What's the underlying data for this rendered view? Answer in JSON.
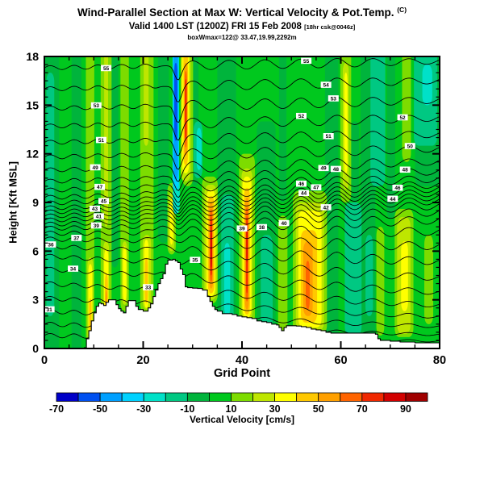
{
  "header": {
    "line1": "Wind-Parallel Section at Max W: Vertical Velocity & Pot.Temp.",
    "line1_suffix": "(C)",
    "line2": "Valid 1400 LST (1200Z) FRI 15 Feb 2008",
    "line2_note": "[18hr csk@0046z]",
    "line3": "boxWmax=122@ 33.47,19.99,2292m"
  },
  "axes": {
    "x": {
      "label": "Grid Point",
      "min": 0,
      "max": 80,
      "major_ticks": [
        0,
        20,
        40,
        60,
        80
      ],
      "minor_step": 5
    },
    "y": {
      "label": "Height [Kft MSL]",
      "min": 0,
      "max": 18,
      "major_ticks": [
        0,
        3,
        6,
        9,
        12,
        15,
        18
      ],
      "minor_step": 0.5
    }
  },
  "colorbar": {
    "title": "Vertical Velocity [cm/s]",
    "min": -70,
    "max": 100,
    "step": 10,
    "tick_labels": [
      -70,
      -50,
      -30,
      -10,
      10,
      30,
      50,
      70,
      90
    ],
    "colors": [
      "#0000C8",
      "#0050F0",
      "#00A0FF",
      "#00D2FF",
      "#00E1C8",
      "#00C882",
      "#00B43C",
      "#00C81E",
      "#7DDC00",
      "#BEE600",
      "#FFFF00",
      "#FFC800",
      "#FFA000",
      "#FF6400",
      "#F02800",
      "#D20000",
      "#A00000"
    ]
  },
  "chart_data": {
    "type": "heatmap",
    "title": "Wind-parallel vertical cross-section: vertical velocity (filled, cm/s) and potential temperature (contour lines, C) over terrain (white silhouette)",
    "x": {
      "label": "Grid Point",
      "range": [
        0,
        80
      ]
    },
    "y": {
      "label": "Height [Kft MSL]",
      "range": [
        0,
        18
      ]
    },
    "field_base_value": 5,
    "streak_format": "[x_start_grid, x_end_grid, z_bottom_kft, z_top_kft, velocity_band_center_cm_s]",
    "streaks": [
      [
        0,
        3,
        0,
        18,
        -5
      ],
      [
        5.5,
        7.5,
        0,
        18,
        -5
      ],
      [
        13.5,
        15,
        5,
        18,
        -5
      ],
      [
        23,
        25.2,
        6.5,
        18,
        -5
      ],
      [
        29.8,
        31.2,
        10,
        18,
        -5
      ],
      [
        35,
        38.8,
        0,
        18,
        -5
      ],
      [
        43,
        46.8,
        0,
        14,
        -5
      ],
      [
        47.5,
        49,
        9,
        18,
        -5
      ],
      [
        56.8,
        59.5,
        0,
        18,
        -5
      ],
      [
        64,
        67,
        0,
        18,
        -5
      ],
      [
        69.3,
        71,
        8,
        18,
        -5
      ],
      [
        75,
        80,
        10,
        18,
        -5
      ],
      [
        62,
        63.7,
        9,
        14,
        -5
      ],
      [
        0.4,
        2,
        2,
        17,
        -15
      ],
      [
        35.8,
        38.3,
        1.5,
        9.5,
        -15
      ],
      [
        43.8,
        46.2,
        1,
        7,
        -15
      ],
      [
        60.8,
        64.2,
        0.8,
        9,
        -15
      ],
      [
        66,
        69,
        10,
        18,
        -15
      ],
      [
        74.8,
        79.5,
        12.5,
        18,
        -15
      ],
      [
        30.2,
        32,
        10.5,
        14,
        -15
      ],
      [
        65,
        66.5,
        2,
        7,
        -15
      ],
      [
        8.4,
        10.1,
        0.3,
        18,
        15
      ],
      [
        11.4,
        13.6,
        0.8,
        18,
        15
      ],
      [
        15.4,
        17.1,
        2.3,
        18,
        15
      ],
      [
        19.4,
        22.1,
        2.2,
        18,
        15
      ],
      [
        24.9,
        26.6,
        5.8,
        10.2,
        15
      ],
      [
        31.9,
        35.1,
        2.8,
        10.6,
        15
      ],
      [
        39.4,
        42.6,
        1.5,
        12,
        15
      ],
      [
        47.3,
        49.2,
        0.9,
        8.2,
        15
      ],
      [
        50.3,
        57.2,
        0.9,
        9.7,
        15
      ],
      [
        59.9,
        62.1,
        9,
        18,
        15
      ],
      [
        70.9,
        74.7,
        0.7,
        8.6,
        15
      ],
      [
        72.4,
        74.2,
        11.5,
        18,
        15
      ],
      [
        27.9,
        30.1,
        10,
        18,
        15
      ],
      [
        76.9,
        78.7,
        1.5,
        7,
        15
      ],
      [
        67.2,
        68.8,
        0.8,
        7.5,
        15
      ],
      [
        8.7,
        9.9,
        0.4,
        5.6,
        25
      ],
      [
        11.9,
        13.1,
        0.9,
        6.6,
        25
      ],
      [
        12.1,
        12.9,
        7.5,
        18,
        25
      ],
      [
        15.7,
        16.8,
        2.7,
        6.6,
        25
      ],
      [
        19.9,
        21.6,
        2.4,
        7,
        25
      ],
      [
        20.1,
        21.1,
        12.5,
        18,
        25
      ],
      [
        32.4,
        34.9,
        3,
        10.1,
        25
      ],
      [
        39.9,
        42.1,
        1.7,
        11.1,
        25
      ],
      [
        50.9,
        56.6,
        1.1,
        9,
        25
      ],
      [
        60.4,
        61.6,
        9.8,
        17.6,
        25
      ],
      [
        71.4,
        74.1,
        0.9,
        8.1,
        25
      ],
      [
        27.6,
        29.6,
        10.3,
        18,
        25
      ],
      [
        25.1,
        26.3,
        6,
        9.6,
        25
      ],
      [
        8.9,
        9.7,
        0.6,
        5.2,
        35
      ],
      [
        12.1,
        12.95,
        1.1,
        6.1,
        35
      ],
      [
        15.9,
        16.6,
        2.9,
        6.3,
        35
      ],
      [
        20.2,
        21.1,
        2.5,
        6.7,
        35
      ],
      [
        32.8,
        34.6,
        3.2,
        9.8,
        35
      ],
      [
        40.1,
        41.9,
        1.9,
        10.6,
        35
      ],
      [
        51.4,
        56.1,
        1.3,
        8.5,
        35
      ],
      [
        27.9,
        29.3,
        10.8,
        18,
        35
      ],
      [
        60.7,
        61.35,
        10.8,
        17,
        35
      ],
      [
        72.2,
        73.6,
        2.3,
        6.6,
        35
      ],
      [
        25.4,
        26.05,
        6.4,
        9.2,
        35
      ],
      [
        12.25,
        12.85,
        1.4,
        4.6,
        45
      ],
      [
        20.35,
        20.95,
        2.8,
        5.6,
        45
      ],
      [
        33.1,
        34.4,
        3.4,
        9.4,
        45
      ],
      [
        40.4,
        41.6,
        2.1,
        9.9,
        45
      ],
      [
        51.9,
        55.2,
        1.6,
        7.3,
        45
      ],
      [
        28.15,
        29.05,
        11.3,
        17.9,
        45
      ],
      [
        9.05,
        9.55,
        0.9,
        3.1,
        45
      ],
      [
        33.35,
        34.15,
        3.7,
        9,
        55
      ],
      [
        40.6,
        41.4,
        2.4,
        9.3,
        55
      ],
      [
        52.4,
        54.3,
        2,
        6.6,
        55
      ],
      [
        28.3,
        28.95,
        11.9,
        17.6,
        55
      ],
      [
        12.35,
        12.75,
        1.9,
        3.6,
        55
      ],
      [
        33.5,
        34,
        4.1,
        8.6,
        65
      ],
      [
        40.75,
        41.25,
        2.9,
        8.7,
        65
      ],
      [
        28.4,
        28.85,
        12.4,
        17.1,
        65
      ],
      [
        52.9,
        53.7,
        2.4,
        5.4,
        65
      ],
      [
        33.58,
        33.95,
        4.5,
        8.1,
        75
      ],
      [
        40.85,
        41.15,
        3.4,
        8.1,
        75
      ],
      [
        28.45,
        28.8,
        12.9,
        16.6,
        75
      ],
      [
        33.63,
        33.9,
        5,
        7.3,
        85
      ],
      [
        40.9,
        41.1,
        5.3,
        7.6,
        85
      ],
      [
        36.4,
        37.6,
        2,
        6.5,
        -25
      ],
      [
        26,
        27.4,
        8.3,
        10.6,
        -25
      ],
      [
        30.8,
        31.8,
        11,
        13.6,
        -25
      ],
      [
        76.5,
        78.5,
        15,
        17.5,
        -25
      ],
      [
        25.95,
        27.25,
        9.8,
        18,
        -35
      ],
      [
        26.15,
        27.05,
        10.4,
        18,
        -45
      ],
      [
        26.3,
        26.9,
        12.8,
        17.6,
        -55
      ]
    ],
    "terrain_profile_format": "[grid_point, terrain_height_kft]",
    "terrain_profile_kft": [
      [
        8,
        0.05
      ],
      [
        8.5,
        0.6
      ],
      [
        9,
        1.1
      ],
      [
        9.5,
        1.7
      ],
      [
        10,
        2.2
      ],
      [
        10.5,
        2.6
      ],
      [
        11,
        2.8
      ],
      [
        11.5,
        2.75
      ],
      [
        12,
        2.65
      ],
      [
        12.5,
        2.85
      ],
      [
        13,
        3.0
      ],
      [
        14,
        3.0
      ],
      [
        14.5,
        2.7
      ],
      [
        15,
        2.45
      ],
      [
        15.5,
        2.3
      ],
      [
        16,
        2.2
      ],
      [
        16.5,
        2.6
      ],
      [
        17,
        2.95
      ],
      [
        18,
        2.95
      ],
      [
        18.5,
        2.6
      ],
      [
        19,
        2.4
      ],
      [
        20,
        2.3
      ],
      [
        21,
        2.5
      ],
      [
        21.5,
        2.75
      ],
      [
        22,
        3.2
      ],
      [
        22.5,
        3.6
      ],
      [
        23,
        4.0
      ],
      [
        23.5,
        4.3
      ],
      [
        24,
        4.6
      ],
      [
        24.5,
        5.2
      ],
      [
        25,
        5.45
      ],
      [
        26,
        5.5
      ],
      [
        26.5,
        5.4
      ],
      [
        27,
        5.3
      ],
      [
        27.5,
        4.9
      ],
      [
        28,
        4.55
      ],
      [
        28.5,
        3.8
      ],
      [
        29,
        3.75
      ],
      [
        30,
        3.72
      ],
      [
        31,
        3.7
      ],
      [
        32,
        3.6
      ],
      [
        33,
        3.2
      ],
      [
        33.5,
        2.9
      ],
      [
        34,
        2.6
      ],
      [
        34.5,
        2.4
      ],
      [
        35,
        2.3
      ],
      [
        36,
        2.15
      ],
      [
        38,
        2.1
      ],
      [
        39,
        2.0
      ],
      [
        40,
        1.95
      ],
      [
        41,
        1.9
      ],
      [
        42,
        1.85
      ],
      [
        43,
        1.7
      ],
      [
        44,
        1.65
      ],
      [
        45,
        1.6
      ],
      [
        46,
        1.5
      ],
      [
        47,
        1.45
      ],
      [
        47.5,
        1.3
      ],
      [
        48,
        1.1
      ],
      [
        48.5,
        1.3
      ],
      [
        49,
        1.4
      ],
      [
        51,
        1.38
      ],
      [
        52,
        1.35
      ],
      [
        53,
        1.3
      ],
      [
        54,
        1.2
      ],
      [
        55,
        1.15
      ],
      [
        56,
        1.1
      ],
      [
        57,
        1.0
      ],
      [
        58,
        0.95
      ],
      [
        63,
        0.95
      ],
      [
        66,
        0.95
      ],
      [
        67,
        0.88
      ],
      [
        67.5,
        0.6
      ],
      [
        68,
        0.5
      ],
      [
        70,
        0.45
      ],
      [
        72,
        0.4
      ],
      [
        75,
        0.35
      ],
      [
        80,
        0.3
      ]
    ],
    "contours": {
      "units": "C",
      "interval": 1,
      "level_format": "[theta_value_C, height_left_kft, height_right_kft, wave_amp_kft, lee_dip_kft, crest_bump_kft]",
      "levels": [
        [
          29,
          0.8,
          0.45,
          0.1,
          0,
          0
        ],
        [
          30,
          1.5,
          0.85,
          0.12,
          0,
          0
        ],
        [
          31,
          2.3,
          1.35,
          0.15,
          0,
          0
        ],
        [
          32,
          3.1,
          1.95,
          0.18,
          0,
          0
        ],
        [
          33,
          4.0,
          2.65,
          0.22,
          0,
          0.15
        ],
        [
          34,
          4.9,
          3.45,
          0.26,
          0,
          0.25
        ],
        [
          35,
          5.7,
          4.35,
          0.3,
          0,
          0.35
        ],
        [
          36,
          6.3,
          5.35,
          0.34,
          0,
          0.4
        ],
        [
          37,
          6.75,
          6.3,
          0.36,
          0,
          0.42
        ],
        [
          38,
          7.1,
          7.2,
          0.38,
          0.1,
          0.42
        ],
        [
          39,
          7.4,
          7.9,
          0.38,
          0.15,
          0.4
        ],
        [
          40,
          7.65,
          8.4,
          0.38,
          0.2,
          0.38
        ],
        [
          41,
          7.9,
          8.8,
          0.38,
          0.25,
          0.35
        ],
        [
          42,
          8.15,
          9.1,
          0.36,
          0.3,
          0.32
        ],
        [
          43,
          8.4,
          9.35,
          0.36,
          0.35,
          0.3
        ],
        [
          44,
          8.65,
          9.6,
          0.35,
          0.4,
          0.27
        ],
        [
          45,
          8.95,
          9.85,
          0.35,
          0.45,
          0.25
        ],
        [
          46,
          9.3,
          10.1,
          0.34,
          0.5,
          0.22
        ],
        [
          47,
          9.75,
          10.45,
          0.34,
          0.6,
          0.2
        ],
        [
          48,
          10.3,
          10.9,
          0.33,
          0.7,
          0.15
        ],
        [
          49,
          11.0,
          11.5,
          0.33,
          0.8,
          0.1
        ],
        [
          50,
          11.8,
          12.3,
          0.32,
          0.85,
          0.05
        ],
        [
          51,
          12.7,
          13.2,
          0.32,
          0.9,
          0
        ],
        [
          52,
          13.7,
          14.2,
          0.31,
          0.95,
          0
        ],
        [
          53,
          14.8,
          15.3,
          0.31,
          0.95,
          0
        ],
        [
          54,
          16.0,
          16.5,
          0.3,
          0.9,
          0
        ],
        [
          55,
          17.3,
          17.7,
          0.28,
          0.8,
          0
        ]
      ],
      "label_format": "[theta_value_C, x_grid_position]",
      "labels": [
        [
          55,
          12.5
        ],
        [
          53,
          10.5
        ],
        [
          51,
          11.5
        ],
        [
          49,
          10.3
        ],
        [
          47,
          11.2
        ],
        [
          45,
          12
        ],
        [
          43,
          10.2
        ],
        [
          41,
          11
        ],
        [
          39,
          10.5
        ],
        [
          37,
          6.5
        ],
        [
          36,
          1.3
        ],
        [
          34,
          5.8
        ],
        [
          33,
          21
        ],
        [
          31,
          1
        ],
        [
          35,
          30.5
        ],
        [
          38,
          44
        ],
        [
          39,
          40
        ],
        [
          40,
          48.5
        ],
        [
          55,
          53
        ],
        [
          54,
          57
        ],
        [
          53,
          58.5
        ],
        [
          52,
          52
        ],
        [
          51,
          57.5
        ],
        [
          49,
          56.5
        ],
        [
          48,
          59
        ],
        [
          47,
          55
        ],
        [
          46,
          52
        ],
        [
          44,
          52.5
        ],
        [
          42,
          57
        ],
        [
          50,
          74
        ],
        [
          48,
          73
        ],
        [
          46,
          71.5
        ],
        [
          44,
          70.5
        ],
        [
          52,
          72.5
        ]
      ]
    }
  }
}
